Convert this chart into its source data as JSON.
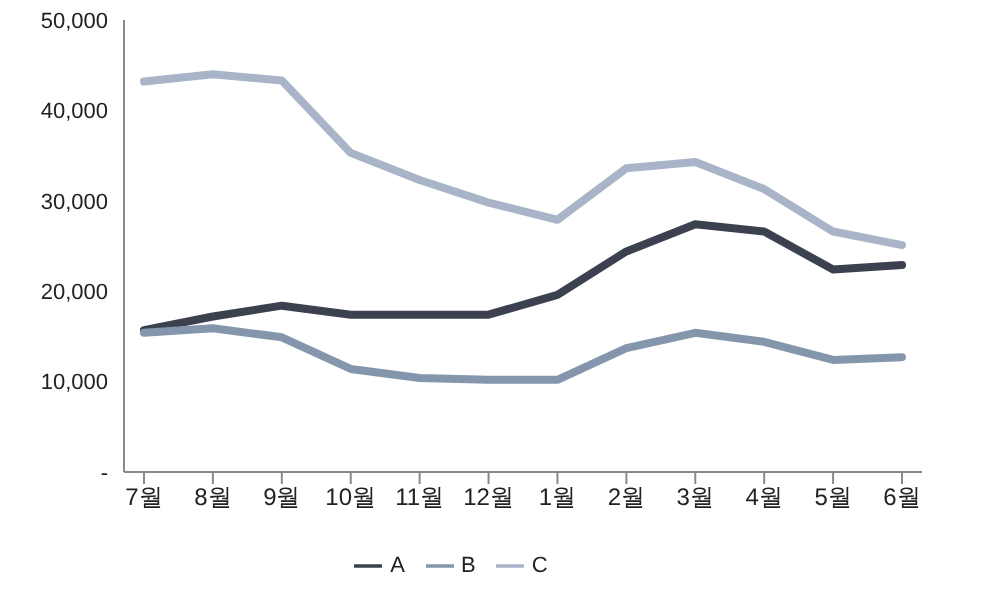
{
  "chart_data": {
    "type": "line",
    "categories": [
      "7월",
      "8월",
      "9월",
      "10월",
      "11월",
      "12월",
      "1월",
      "2월",
      "3월",
      "4월",
      "5월",
      "6월"
    ],
    "series": [
      {
        "name": "A",
        "color": "#3c4150",
        "values": [
          15700,
          17200,
          18400,
          17400,
          17400,
          17400,
          19600,
          24400,
          27400,
          26600,
          22400,
          22900
        ]
      },
      {
        "name": "B",
        "color": "#8496ab",
        "values": [
          15400,
          15900,
          14900,
          11400,
          10400,
          10200,
          10200,
          13700,
          15400,
          14400,
          12400,
          12700
        ]
      },
      {
        "name": "C",
        "color": "#aab4c8",
        "values": [
          43200,
          44000,
          43300,
          35300,
          32300,
          29800,
          27900,
          33600,
          34300,
          31300,
          26600,
          25100
        ]
      }
    ],
    "ylim": [
      0,
      50000
    ],
    "yticks": [
      {
        "value": 0,
        "label": "-"
      },
      {
        "value": 10000,
        "label": "10,000"
      },
      {
        "value": 20000,
        "label": "20,000"
      },
      {
        "value": 30000,
        "label": "30,000"
      },
      {
        "value": 40000,
        "label": "40,000"
      },
      {
        "value": 50000,
        "label": "50,000"
      }
    ],
    "grid": false,
    "legend": "bottom",
    "marker": "none",
    "line_style": "solid"
  }
}
